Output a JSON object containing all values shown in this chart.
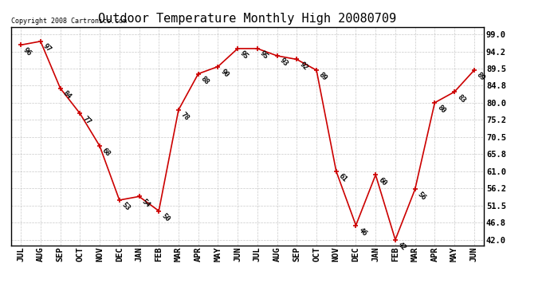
{
  "title": "Outdoor Temperature Monthly High 20080709",
  "copyright": "Copyright 2008 Cartronics.com",
  "months": [
    "JUL",
    "AUG",
    "SEP",
    "OCT",
    "NOV",
    "DEC",
    "JAN",
    "FEB",
    "MAR",
    "APR",
    "MAY",
    "JUN",
    "JUL",
    "AUG",
    "SEP",
    "OCT",
    "NOV",
    "DEC",
    "JAN",
    "FEB",
    "MAR",
    "APR",
    "MAY",
    "JUN"
  ],
  "values": [
    96,
    97,
    84,
    77,
    68,
    53,
    54,
    50,
    78,
    88,
    90,
    95,
    95,
    93,
    92,
    89,
    61,
    46,
    60,
    42,
    56,
    80,
    83,
    89
  ],
  "line_color": "#cc0000",
  "marker": "+",
  "marker_color": "#cc0000",
  "bg_color": "#ffffff",
  "grid_color": "#bbbbbb",
  "yticks": [
    42.0,
    46.8,
    51.5,
    56.2,
    61.0,
    65.8,
    70.5,
    75.2,
    80.0,
    84.8,
    89.5,
    94.2,
    99.0
  ],
  "ylim": [
    40.5,
    101.0
  ],
  "title_fontsize": 11,
  "label_fontsize": 6.5,
  "tick_fontsize": 7.5
}
